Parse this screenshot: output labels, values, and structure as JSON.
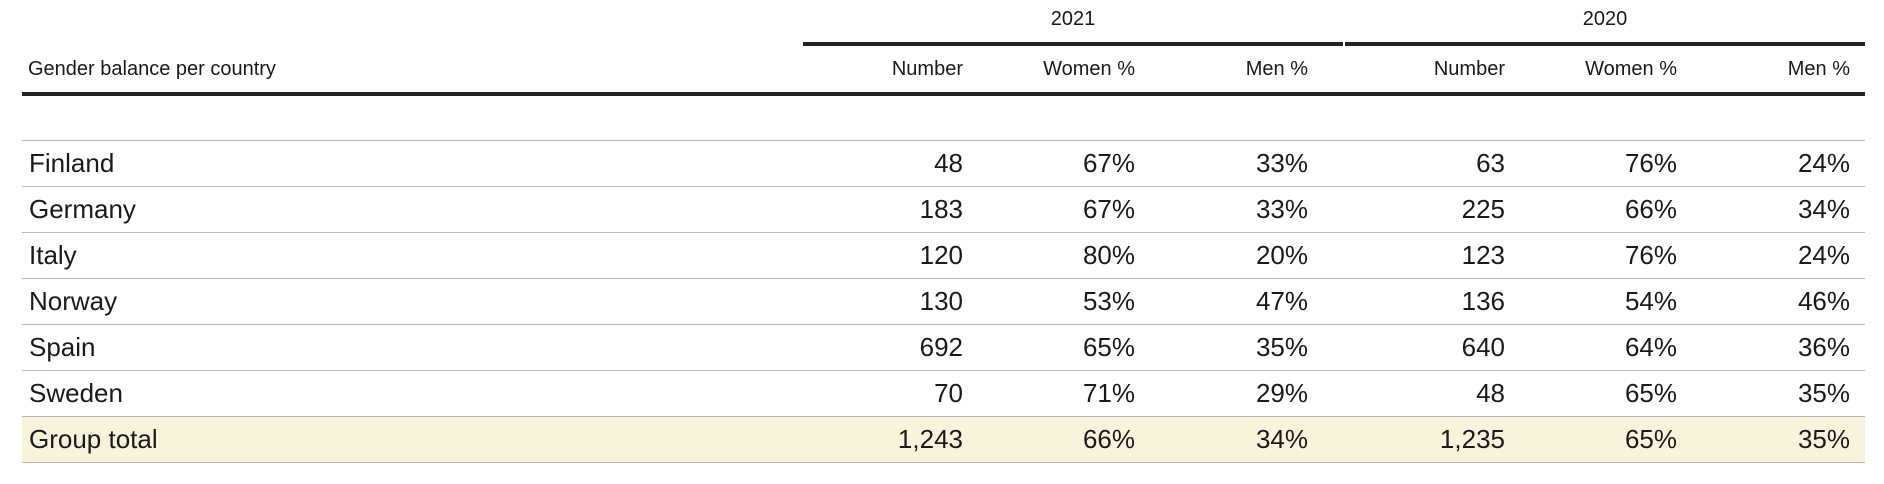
{
  "title": "Gender balance per country",
  "years": [
    "2021",
    "2020"
  ],
  "columns": [
    "Number",
    "Women %",
    "Men %",
    "Number",
    "Women %",
    "Men %"
  ],
  "rows": [
    {
      "country": "Finland",
      "values": [
        "48",
        "67%",
        "33%",
        "63",
        "76%",
        "24%"
      ]
    },
    {
      "country": "Germany",
      "values": [
        "183",
        "67%",
        "33%",
        "225",
        "66%",
        "34%"
      ]
    },
    {
      "country": "Italy",
      "values": [
        "120",
        "80%",
        "20%",
        "123",
        "76%",
        "24%"
      ]
    },
    {
      "country": "Norway",
      "values": [
        "130",
        "53%",
        "47%",
        "136",
        "54%",
        "46%"
      ]
    },
    {
      "country": "Spain",
      "values": [
        "692",
        "65%",
        "35%",
        "640",
        "64%",
        "36%"
      ]
    },
    {
      "country": "Sweden",
      "values": [
        "70",
        "71%",
        "29%",
        "48",
        "65%",
        "35%"
      ]
    }
  ],
  "total": {
    "country": "Group total",
    "values": [
      "1,243",
      "66%",
      "34%",
      "1,235",
      "65%",
      "35%"
    ]
  },
  "colors": {
    "rule": "#222222",
    "row_border": "#b9b9b9",
    "total_bg": "#faf3dc"
  }
}
